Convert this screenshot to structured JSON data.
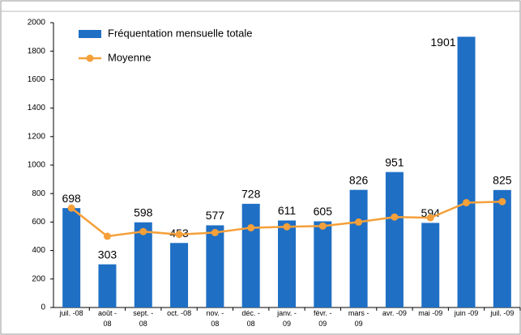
{
  "chart_data": {
    "type": "bar",
    "categories": [
      [
        "juil. -08"
      ],
      [
        "août -",
        "08"
      ],
      [
        "sept. -",
        "08"
      ],
      [
        "oct. -08"
      ],
      [
        "nov. -",
        "08"
      ],
      [
        "déc. -",
        "08"
      ],
      [
        "janv. -",
        "09"
      ],
      [
        "févr. -",
        "09"
      ],
      [
        "mars -",
        "09"
      ],
      [
        "avr. -09"
      ],
      [
        "mai -09"
      ],
      [
        "juin -09"
      ],
      [
        "juil. -09"
      ]
    ],
    "series": [
      {
        "name": "Fréquentation mensuelle totale",
        "type": "bar",
        "color": "#1f6fc5",
        "values": [
          698,
          303,
          598,
          453,
          577,
          728,
          611,
          605,
          826,
          951,
          594,
          1901,
          825
        ]
      },
      {
        "name": "Moyenne",
        "type": "line",
        "color": "#f5a03a",
        "values": [
          698,
          500,
          533,
          513,
          526,
          560,
          567,
          572,
          600,
          635,
          630,
          736,
          743
        ]
      }
    ],
    "ylim": [
      0,
      2000
    ],
    "yticks": [
      0,
      200,
      400,
      600,
      800,
      1000,
      1200,
      1400,
      1600,
      1800,
      2000
    ]
  }
}
